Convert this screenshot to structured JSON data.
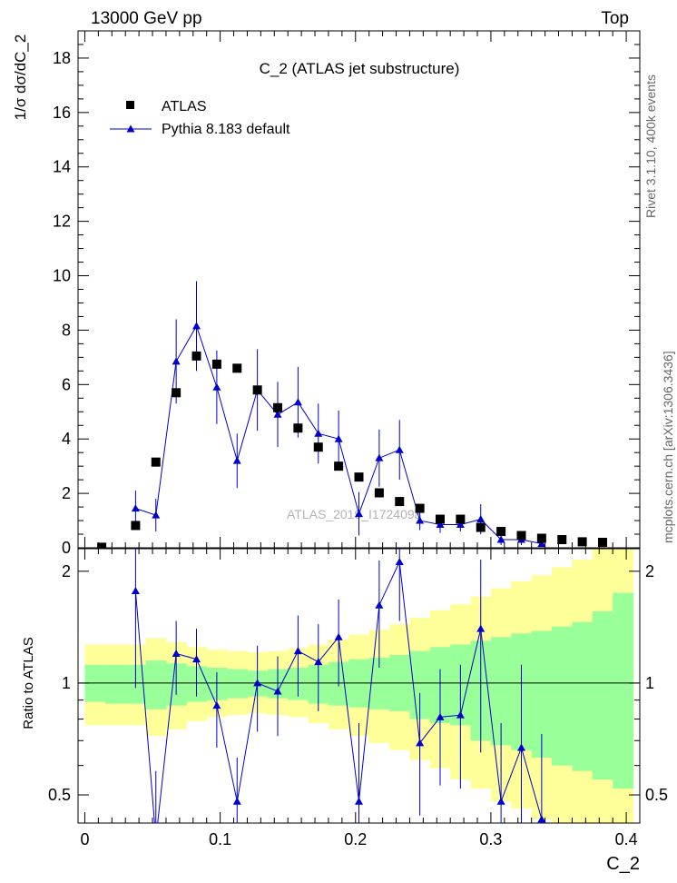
{
  "header": {
    "left": "13000 GeV pp",
    "right": "Top"
  },
  "side_labels": {
    "rivet": "Rivet 3.1.10,  400k events",
    "mcplots": "mcplots.cern.ch [arXiv:1306.3436]"
  },
  "chart_data": [
    {
      "type": "scatter",
      "title": "C_2 (ATLAS jet substructure)",
      "ylabel": "1/σ dσ/dC_2",
      "xlabel": "C_2",
      "xlim": [
        -0.005,
        0.41
      ],
      "ylim": [
        0,
        19
      ],
      "x_ticks": [
        "0",
        "0.1",
        "0.2",
        "0.3",
        "0.4"
      ],
      "y_ticks": [
        "2",
        "4",
        "6",
        "8",
        "10",
        "12",
        "14",
        "16",
        "18"
      ],
      "watermark": "ATLAS_2019_I1724098",
      "legend": {
        "placement": "top-left",
        "entries": [
          "ATLAS",
          "Pythia 8.183 default"
        ]
      },
      "series": [
        {
          "name": "ATLAS",
          "color": "#000000",
          "marker": "square",
          "x": [
            0.0125,
            0.0375,
            0.0525,
            0.0675,
            0.0825,
            0.0975,
            0.1125,
            0.1275,
            0.1425,
            0.1575,
            0.1725,
            0.1875,
            0.2025,
            0.2175,
            0.2325,
            0.2475,
            0.2625,
            0.2775,
            0.2925,
            0.3075,
            0.3225,
            0.3375,
            0.3525,
            0.3675,
            0.3825
          ],
          "y": [
            0.02,
            0.82,
            3.15,
            5.7,
            7.05,
            6.75,
            6.6,
            5.8,
            5.15,
            4.4,
            3.7,
            3.0,
            2.6,
            2.02,
            1.7,
            1.45,
            1.05,
            1.05,
            0.75,
            0.6,
            0.45,
            0.35,
            0.3,
            0.22,
            0.2
          ]
        },
        {
          "name": "Pythia 8.183 default",
          "color": "#0000cc",
          "marker": "triangle",
          "x": [
            0.0375,
            0.0525,
            0.0675,
            0.0825,
            0.0975,
            0.1125,
            0.1275,
            0.1425,
            0.1575,
            0.1725,
            0.1875,
            0.2025,
            0.2175,
            0.2325,
            0.2475,
            0.2625,
            0.2775,
            0.2925,
            0.3075,
            0.3225,
            0.3375
          ],
          "y": [
            1.45,
            1.2,
            6.85,
            8.15,
            5.9,
            3.2,
            5.8,
            4.9,
            5.35,
            4.2,
            4.0,
            1.25,
            3.3,
            3.6,
            1.0,
            0.85,
            0.85,
            1.05,
            0.3,
            0.3,
            0.15
          ],
          "yerr": [
            0.65,
            0.6,
            1.55,
            1.65,
            1.35,
            1.0,
            1.5,
            1.2,
            1.3,
            1.1,
            1.05,
            0.8,
            1.05,
            1.1,
            0.35,
            0.3,
            0.25,
            0.55,
            0.2,
            0.2,
            0.1
          ]
        }
      ]
    },
    {
      "type": "scatter",
      "ylabel": "Ratio to ATLAS",
      "xlabel": "C_2",
      "xlim": [
        -0.005,
        0.41
      ],
      "ylim": [
        0.42,
        2.3
      ],
      "y_ticks": [
        "0.5",
        "1",
        "2"
      ],
      "reference_line": 1,
      "bands": {
        "x_edges": [
          0.0,
          0.015,
          0.03,
          0.045,
          0.06,
          0.075,
          0.09,
          0.105,
          0.12,
          0.135,
          0.15,
          0.165,
          0.18,
          0.195,
          0.21,
          0.225,
          0.24,
          0.255,
          0.27,
          0.285,
          0.3,
          0.315,
          0.33,
          0.345,
          0.36,
          0.375,
          0.39,
          0.405
        ],
        "inner_color": "#99ff99",
        "outer_color": "#ffff99",
        "inner_low": [
          0.89,
          0.88,
          0.88,
          0.85,
          0.87,
          0.89,
          0.9,
          0.91,
          0.92,
          0.91,
          0.9,
          0.88,
          0.87,
          0.86,
          0.85,
          0.84,
          0.8,
          0.78,
          0.77,
          0.7,
          0.68,
          0.66,
          0.63,
          0.6,
          0.58,
          0.55,
          0.52
        ],
        "inner_high": [
          1.12,
          1.12,
          1.12,
          1.15,
          1.13,
          1.11,
          1.1,
          1.09,
          1.08,
          1.09,
          1.1,
          1.12,
          1.14,
          1.16,
          1.17,
          1.19,
          1.22,
          1.25,
          1.27,
          1.3,
          1.33,
          1.36,
          1.38,
          1.42,
          1.46,
          1.56,
          1.75
        ],
        "outer_low": [
          0.77,
          0.77,
          0.77,
          0.72,
          0.75,
          0.79,
          0.81,
          0.82,
          0.83,
          0.82,
          0.81,
          0.78,
          0.75,
          0.72,
          0.69,
          0.66,
          0.62,
          0.59,
          0.55,
          0.52,
          0.48,
          0.46,
          0.43,
          0.42,
          0.42,
          0.42,
          0.42
        ],
        "outer_high": [
          1.27,
          1.27,
          1.27,
          1.32,
          1.29,
          1.25,
          1.23,
          1.22,
          1.21,
          1.22,
          1.24,
          1.27,
          1.31,
          1.35,
          1.39,
          1.44,
          1.5,
          1.57,
          1.63,
          1.71,
          1.8,
          1.88,
          1.95,
          2.05,
          2.15,
          2.3,
          2.3
        ]
      },
      "series": [
        {
          "name": "Pythia 8.183 default",
          "color": "#0000cc",
          "x": [
            0.0375,
            0.0525,
            0.0675,
            0.0825,
            0.0975,
            0.1125,
            0.1275,
            0.1425,
            0.1575,
            0.1725,
            0.1875,
            0.2025,
            0.2175,
            0.2325,
            0.2475,
            0.2625,
            0.2775,
            0.2925,
            0.3075,
            0.3225,
            0.3375
          ],
          "y": [
            1.77,
            0.38,
            1.2,
            1.16,
            0.87,
            0.48,
            1.0,
            0.95,
            1.22,
            1.14,
            1.33,
            0.48,
            1.62,
            2.12,
            0.69,
            0.81,
            0.82,
            1.4,
            0.48,
            0.67,
            0.43
          ],
          "yerr": [
            0.8,
            0.2,
            0.27,
            0.24,
            0.2,
            0.15,
            0.26,
            0.23,
            0.3,
            0.3,
            0.35,
            0.3,
            0.52,
            0.65,
            0.25,
            0.28,
            0.3,
            0.75,
            0.3,
            0.45,
            0.3
          ]
        }
      ]
    }
  ]
}
